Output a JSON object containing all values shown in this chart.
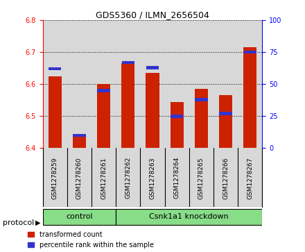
{
  "title": "GDS5360 / ILMN_2656504",
  "samples": [
    "GSM1278259",
    "GSM1278260",
    "GSM1278261",
    "GSM1278262",
    "GSM1278263",
    "GSM1278264",
    "GSM1278265",
    "GSM1278266",
    "GSM1278267"
  ],
  "transformed_count": [
    6.625,
    6.445,
    6.6,
    6.665,
    6.635,
    6.545,
    6.585,
    6.565,
    6.715
  ],
  "percentile_rank": [
    62,
    10,
    45,
    67,
    63,
    25,
    38,
    27,
    75
  ],
  "ylim_left": [
    6.4,
    6.8
  ],
  "ylim_right": [
    0,
    100
  ],
  "yticks_left": [
    6.4,
    6.5,
    6.6,
    6.7,
    6.8
  ],
  "yticks_right": [
    0,
    25,
    50,
    75,
    100
  ],
  "bar_color_red": "#cc2200",
  "bar_color_blue": "#3333cc",
  "bar_width": 0.55,
  "control_samples": 3,
  "control_label": "control",
  "knockdown_label": "Csnk1a1 knockdown",
  "protocol_label": "protocol",
  "legend_red": "transformed count",
  "legend_blue": "percentile rank within the sample",
  "plot_bg": "#d8d8d8",
  "label_bg": "#d8d8d8",
  "green_color": "#88dd88",
  "baseline": 6.4,
  "fig_bg": "#ffffff"
}
